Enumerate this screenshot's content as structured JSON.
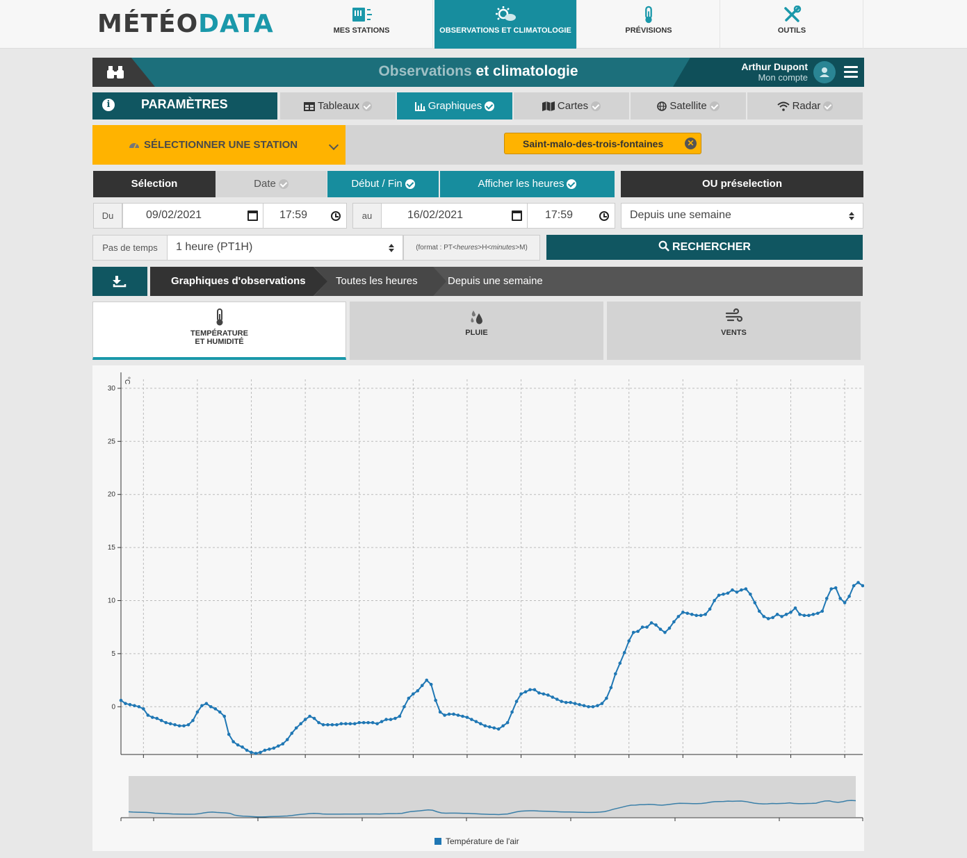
{
  "logo": {
    "part1": "MÉTÉO",
    "part2": "DATA"
  },
  "nav": [
    {
      "label": "MES STATIONS",
      "icon": "station-icon",
      "active": false
    },
    {
      "label": "OBSERVATIONS ET CLIMATOLOGIE",
      "icon": "weather-sun-cloud-icon",
      "active": true
    },
    {
      "label": "PRÉVISIONS",
      "icon": "thermometer-icon",
      "active": false
    },
    {
      "label": "OUTILS",
      "icon": "tools-icon",
      "active": false
    }
  ],
  "header": {
    "title_part1": "Observations",
    "title_part2": "et climatologie",
    "user_name": "Arthur Dupont",
    "user_account": "Mon compte"
  },
  "tabs": {
    "params_label": "PARAMÈTRES",
    "views": [
      {
        "label": "Tableaux",
        "icon": "table-icon",
        "active": false
      },
      {
        "label": "Graphiques",
        "icon": "bar-chart-icon",
        "active": true
      },
      {
        "label": "Cartes",
        "icon": "map-icon",
        "active": false
      },
      {
        "label": "Satellite",
        "icon": "globe-icon",
        "active": false
      },
      {
        "label": "Radar",
        "icon": "wifi-icon",
        "active": false
      }
    ]
  },
  "station": {
    "select_label": "SÉLECTIONNER UNE STATION",
    "selected": "Saint-malo-des-trois-fontaines"
  },
  "selection": {
    "selection_label": "Sélection",
    "date_label": "Date",
    "debut_fin_label": "Début / Fin",
    "afficher_heures_label": "Afficher les heures",
    "preselection_label": "OU préselection"
  },
  "dates": {
    "from_label": "Du",
    "from_date": "09/02/2021",
    "from_time": "17:59",
    "to_label": "au",
    "to_date": "16/02/2021",
    "to_time": "17:59",
    "preset": "Depuis une semaine"
  },
  "step": {
    "label": "Pas de temps",
    "value": "1 heure (PT1H)",
    "format_prefix": "(format : PT<",
    "format_h": "heures",
    "format_mid": ">H<",
    "format_m": "minutes",
    "format_suffix": ">M)",
    "search_label": "RECHERCHER"
  },
  "breadcrumb": [
    "Graphiques d'observations",
    "Toutes les heures",
    "Depuis une semaine"
  ],
  "chart_tabs": [
    {
      "line1": "TEMPÉRATURE",
      "line2": "ET HUMIDITÉ",
      "icon": "thermometer-icon",
      "active": true
    },
    {
      "line1": "PLUIE",
      "line2": "",
      "icon": "rain-drops-icon",
      "active": false
    },
    {
      "line1": "VENTS",
      "line2": "",
      "icon": "wind-icon",
      "active": false
    }
  ],
  "chart_data": {
    "type": "line",
    "ylabel": "°C",
    "ylim": [
      -4.5,
      31.5
    ],
    "yticks": [
      0,
      5,
      10,
      15,
      20,
      25,
      30
    ],
    "grid": true,
    "legend_position": "bottom-center",
    "series": [
      {
        "name": "Température de l'air",
        "color": "#1f77b4",
        "values": [
          0.6,
          0.3,
          0.2,
          0.1,
          0.0,
          -0.2,
          -0.8,
          -1.0,
          -1.1,
          -1.3,
          -1.5,
          -1.6,
          -1.7,
          -1.8,
          -1.8,
          -1.7,
          -1.3,
          -0.5,
          0.1,
          0.3,
          0.0,
          -0.2,
          -0.5,
          -0.9,
          -2.6,
          -3.3,
          -3.6,
          -3.8,
          -4.1,
          -4.3,
          -4.4,
          -4.3,
          -4.1,
          -4.0,
          -3.9,
          -3.7,
          -3.5,
          -3.1,
          -2.5,
          -2.0,
          -1.6,
          -1.2,
          -0.9,
          -1.1,
          -1.5,
          -1.7,
          -1.7,
          -1.7,
          -1.7,
          -1.6,
          -1.6,
          -1.6,
          -1.6,
          -1.5,
          -1.5,
          -1.5,
          -1.5,
          -1.6,
          -1.4,
          -1.2,
          -1.2,
          -1.1,
          -0.9,
          0.0,
          0.8,
          1.2,
          1.5,
          2.0,
          2.5,
          2.1,
          0.6,
          -0.5,
          -0.8,
          -0.7,
          -0.7,
          -0.8,
          -0.9,
          -1.0,
          -1.2,
          -1.4,
          -1.6,
          -1.8,
          -1.9,
          -2.0,
          -2.1,
          -1.8,
          -1.5,
          -0.5,
          0.5,
          1.2,
          1.4,
          1.6,
          1.6,
          1.3,
          1.2,
          1.1,
          0.9,
          0.7,
          0.5,
          0.4,
          0.4,
          0.3,
          0.2,
          0.1,
          0.0,
          0.0,
          0.1,
          0.3,
          0.8,
          1.8,
          3.1,
          4.1,
          5.1,
          6.2,
          7.0,
          7.1,
          7.5,
          7.5,
          7.9,
          7.7,
          7.3,
          7.0,
          7.4,
          8.0,
          8.5,
          8.9,
          8.8,
          8.7,
          8.6,
          8.6,
          8.7,
          9.2,
          10.0,
          10.5,
          10.6,
          10.7,
          11.0,
          10.8,
          11.0,
          11.1,
          10.6,
          9.8,
          9.0,
          8.5,
          8.3,
          8.4,
          8.7,
          8.5,
          8.7,
          8.9,
          9.3,
          8.7,
          8.6,
          8.6,
          8.7,
          8.8,
          9.0,
          10.2,
          11.1,
          11.2,
          10.2,
          9.8,
          10.4,
          11.4,
          11.7,
          11.4
        ]
      }
    ]
  }
}
